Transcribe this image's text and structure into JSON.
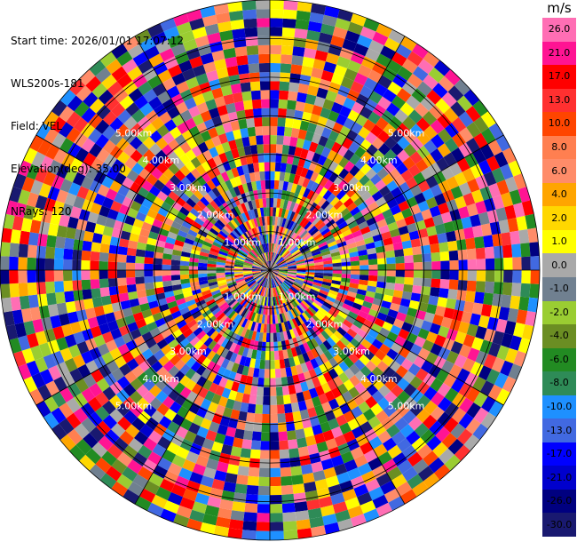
{
  "header": {
    "start_time": "Start time: 2026/01/01 17:07:12",
    "site": "WLS200s-181",
    "field": "Field: VEL",
    "elevation": "Elevation(deg): 35.00",
    "nrays": "NRays: 120"
  },
  "colorbar": {
    "unit": "m/s",
    "ticks": [
      "26.0",
      "21.0",
      "17.0",
      "13.0",
      "10.0",
      "8.0",
      "6.0",
      "4.0",
      "2.0",
      "1.0",
      "0.0",
      "-1.0",
      "-2.0",
      "-4.0",
      "-6.0",
      "-8.0",
      "-10.0",
      "-13.0",
      "-17.0",
      "-21.0",
      "-26.0",
      "-30.0"
    ],
    "colors": [
      "#ff6eb4",
      "#ff1493",
      "#ff0000",
      "#ff3030",
      "#ff4500",
      "#ff7f50",
      "#ff8c69",
      "#ffa500",
      "#ffd700",
      "#ffff00",
      "#a9a9a9",
      "#708090",
      "#9acd32",
      "#6b8e23",
      "#228b22",
      "#2e8b57",
      "#1e90ff",
      "#4169e1",
      "#0000ff",
      "#0000cd",
      "#000080",
      "#191970"
    ]
  },
  "chart_data": {
    "type": "heatmap",
    "projection": "polar-ppi",
    "field": "VEL",
    "elevation_deg": 35.0,
    "nrays": 120,
    "range_labels": [
      "1.00km",
      "2.00km",
      "3.00km",
      "4.00km",
      "5.00km"
    ],
    "range_rings_km": [
      1,
      2,
      3,
      4,
      5,
      6,
      7
    ],
    "max_range_km": 7,
    "value_range": [
      -30,
      26
    ],
    "units": "m/s"
  }
}
